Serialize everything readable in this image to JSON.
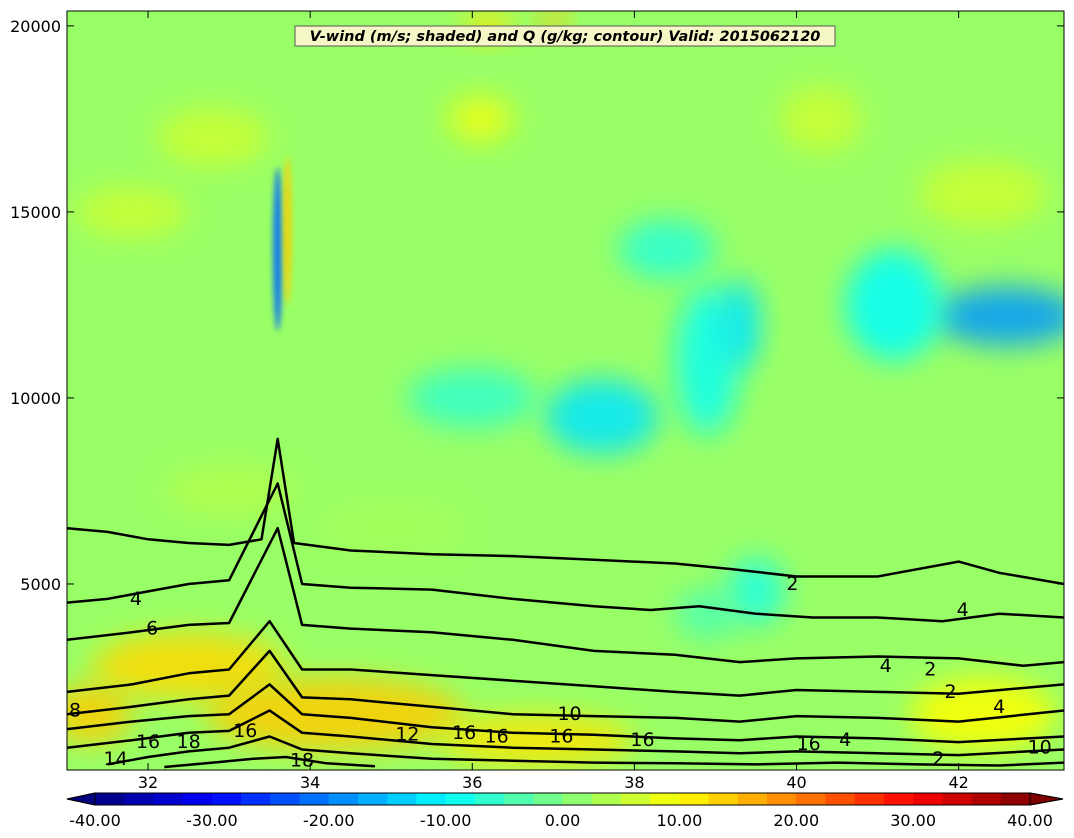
{
  "chart_data": {
    "type": "heatmap",
    "title": "V-wind (m/s; shaded) and Q (g/kg; contour) Valid: 2015062120",
    "xlabel": "",
    "ylabel": "",
    "xlim": [
      31.0,
      43.3
    ],
    "ylim": [
      0,
      20400
    ],
    "x_ticks": [
      32,
      34,
      36,
      38,
      40,
      42
    ],
    "y_ticks": [
      5000,
      10000,
      15000,
      20000
    ],
    "shaded": {
      "variable": "V-wind",
      "units": "m/s",
      "colormap": "jet",
      "range": [
        -40,
        40
      ],
      "colorbar_ticks": [
        "-40.00",
        "-30.00",
        "-20.00",
        "-10.00",
        "0.00",
        "10.00",
        "20.00",
        "30.00",
        "40.00"
      ],
      "colorbar_extend": "both"
    },
    "contours": {
      "variable": "Q",
      "units": "g/kg",
      "color": "#000000",
      "lines": [
        {
          "level": 2,
          "points": [
            [
              31.0,
              6500
            ],
            [
              31.5,
              6400
            ],
            [
              32.0,
              6200
            ],
            [
              32.5,
              6100
            ],
            [
              33.0,
              6050
            ],
            [
              33.4,
              6200
            ],
            [
              33.6,
              8900
            ],
            [
              33.8,
              6100
            ],
            [
              34.5,
              5900
            ],
            [
              35.5,
              5800
            ],
            [
              36.5,
              5750
            ],
            [
              37.5,
              5650
            ],
            [
              38.5,
              5550
            ],
            [
              39.2,
              5400
            ],
            [
              40.0,
              5200
            ],
            [
              41.0,
              5200
            ],
            [
              42.0,
              5600
            ],
            [
              42.5,
              5300
            ],
            [
              43.3,
              5000
            ]
          ]
        },
        {
          "level": 4,
          "points": [
            [
              31.0,
              4500
            ],
            [
              31.5,
              4600
            ],
            [
              32.0,
              4800
            ],
            [
              32.5,
              5000
            ],
            [
              33.0,
              5100
            ],
            [
              33.6,
              7700
            ],
            [
              33.9,
              5000
            ],
            [
              34.5,
              4900
            ],
            [
              35.5,
              4850
            ],
            [
              36.5,
              4600
            ],
            [
              37.5,
              4400
            ],
            [
              38.2,
              4300
            ],
            [
              38.8,
              4400
            ],
            [
              39.5,
              4200
            ],
            [
              40.2,
              4100
            ],
            [
              41.0,
              4100
            ],
            [
              41.8,
              4000
            ],
            [
              42.5,
              4200
            ],
            [
              43.3,
              4100
            ]
          ]
        },
        {
          "level": 6,
          "points": [
            [
              31.0,
              3500
            ],
            [
              31.8,
              3700
            ],
            [
              32.5,
              3900
            ],
            [
              33.0,
              3950
            ],
            [
              33.6,
              6500
            ],
            [
              33.9,
              3900
            ],
            [
              34.5,
              3800
            ],
            [
              35.5,
              3700
            ],
            [
              36.5,
              3500
            ],
            [
              37.5,
              3200
            ],
            [
              38.5,
              3100
            ],
            [
              39.3,
              2900
            ],
            [
              40.0,
              3000
            ],
            [
              41.0,
              3050
            ],
            [
              42.0,
              3000
            ],
            [
              42.8,
              2800
            ],
            [
              43.3,
              2900
            ]
          ]
        },
        {
          "level": 8,
          "points": [
            [
              31.0,
              2100
            ],
            [
              31.8,
              2300
            ],
            [
              32.5,
              2600
            ],
            [
              33.0,
              2700
            ],
            [
              33.5,
              4000
            ],
            [
              33.9,
              2700
            ],
            [
              34.5,
              2700
            ],
            [
              35.5,
              2550
            ],
            [
              36.5,
              2400
            ],
            [
              37.5,
              2250
            ],
            [
              38.5,
              2100
            ],
            [
              39.3,
              2000
            ],
            [
              40.0,
              2150
            ],
            [
              41.0,
              2100
            ],
            [
              42.0,
              2050
            ],
            [
              43.3,
              2300
            ]
          ]
        },
        {
          "level": 10,
          "points": [
            [
              31.0,
              1500
            ],
            [
              31.8,
              1700
            ],
            [
              32.5,
              1900
            ],
            [
              33.0,
              2000
            ],
            [
              33.5,
              3200
            ],
            [
              33.9,
              1950
            ],
            [
              34.5,
              1900
            ],
            [
              35.5,
              1700
            ],
            [
              36.5,
              1500
            ],
            [
              37.5,
              1450
            ],
            [
              38.5,
              1400
            ],
            [
              39.3,
              1300
            ],
            [
              40.0,
              1450
            ],
            [
              41.0,
              1400
            ],
            [
              42.0,
              1300
            ],
            [
              43.3,
              1600
            ]
          ]
        },
        {
          "level": 12,
          "points": [
            [
              31.0,
              1100
            ],
            [
              31.8,
              1300
            ],
            [
              32.5,
              1450
            ],
            [
              33.0,
              1500
            ],
            [
              33.5,
              2300
            ],
            [
              33.9,
              1500
            ],
            [
              34.5,
              1400
            ],
            [
              35.5,
              1150
            ],
            [
              36.5,
              1000
            ],
            [
              37.5,
              950
            ],
            [
              38.5,
              850
            ],
            [
              39.3,
              800
            ],
            [
              40.0,
              900
            ],
            [
              41.0,
              850
            ],
            [
              42.0,
              750
            ],
            [
              43.3,
              900
            ]
          ]
        },
        {
          "level": 14,
          "points": [
            [
              31.0,
              600
            ],
            [
              31.8,
              800
            ],
            [
              32.5,
              1000
            ],
            [
              33.0,
              1050
            ],
            [
              33.5,
              1600
            ],
            [
              33.9,
              1000
            ],
            [
              34.5,
              900
            ],
            [
              35.5,
              700
            ],
            [
              36.5,
              600
            ],
            [
              37.5,
              550
            ],
            [
              38.5,
              500
            ],
            [
              39.3,
              450
            ],
            [
              40.0,
              500
            ],
            [
              41.0,
              450
            ],
            [
              42.0,
              400
            ],
            [
              43.3,
              550
            ]
          ]
        },
        {
          "level": 16,
          "points": [
            [
              31.5,
              150
            ],
            [
              32.0,
              350
            ],
            [
              32.5,
              500
            ],
            [
              33.0,
              600
            ],
            [
              33.5,
              900
            ],
            [
              33.9,
              550
            ],
            [
              34.5,
              450
            ],
            [
              35.5,
              300
            ],
            [
              36.5,
              250
            ],
            [
              37.5,
              200
            ],
            [
              38.5,
              180
            ],
            [
              39.5,
              150
            ],
            [
              40.5,
              200
            ],
            [
              41.5,
              150
            ],
            [
              42.5,
              120
            ],
            [
              43.3,
              200
            ]
          ]
        },
        {
          "level": 18,
          "points": [
            [
              32.2,
              80
            ],
            [
              32.8,
              200
            ],
            [
              33.3,
              300
            ],
            [
              33.7,
              350
            ],
            [
              34.2,
              180
            ],
            [
              34.8,
              100
            ]
          ]
        }
      ],
      "labels": [
        {
          "text": "2",
          "x": 39.95,
          "y": 5000
        },
        {
          "text": "4",
          "x": 31.85,
          "y": 4600
        },
        {
          "text": "6",
          "x": 32.05,
          "y": 3800
        },
        {
          "text": "4",
          "x": 42.05,
          "y": 4300
        },
        {
          "text": "4",
          "x": 41.1,
          "y": 2800
        },
        {
          "text": "2",
          "x": 41.65,
          "y": 2700
        },
        {
          "text": "2",
          "x": 41.9,
          "y": 2100
        },
        {
          "text": "4",
          "x": 42.5,
          "y": 1700
        },
        {
          "text": "8",
          "x": 31.1,
          "y": 1600
        },
        {
          "text": "10",
          "x": 37.2,
          "y": 1500
        },
        {
          "text": "12",
          "x": 35.2,
          "y": 950
        },
        {
          "text": "16",
          "x": 35.9,
          "y": 1000
        },
        {
          "text": "16",
          "x": 36.3,
          "y": 900
        },
        {
          "text": "16",
          "x": 37.1,
          "y": 900
        },
        {
          "text": "16",
          "x": 33.2,
          "y": 1050
        },
        {
          "text": "16",
          "x": 32.0,
          "y": 750
        },
        {
          "text": "16",
          "x": 38.1,
          "y": 800
        },
        {
          "text": "16",
          "x": 40.15,
          "y": 700
        },
        {
          "text": "4",
          "x": 40.6,
          "y": 800
        },
        {
          "text": "18",
          "x": 32.5,
          "y": 750
        },
        {
          "text": "18",
          "x": 33.9,
          "y": 250
        },
        {
          "text": "14",
          "x": 31.6,
          "y": 300
        },
        {
          "text": "2",
          "x": 41.75,
          "y": 300
        },
        {
          "text": "10",
          "x": 43.0,
          "y": 600
        }
      ]
    },
    "shading_features": [
      {
        "x": 33.6,
        "y": 14000,
        "value": -22,
        "rx": 0.06,
        "ry": 2200
      },
      {
        "x": 33.72,
        "y": 14500,
        "value": 14,
        "rx": 0.05,
        "ry": 2000
      },
      {
        "x": 42.6,
        "y": 12200,
        "value": -18,
        "rx": 0.9,
        "ry": 800
      },
      {
        "x": 41.2,
        "y": 12500,
        "value": -10,
        "rx": 0.6,
        "ry": 1500
      },
      {
        "x": 37.6,
        "y": 9500,
        "value": -12,
        "rx": 0.7,
        "ry": 1000
      },
      {
        "x": 38.9,
        "y": 11000,
        "value": -9,
        "rx": 0.4,
        "ry": 2000
      },
      {
        "x": 39.3,
        "y": 12000,
        "value": -12,
        "rx": 0.25,
        "ry": 1200
      },
      {
        "x": 36.0,
        "y": 10000,
        "value": -6,
        "rx": 0.8,
        "ry": 800
      },
      {
        "x": 38.4,
        "y": 14000,
        "value": -7,
        "rx": 0.6,
        "ry": 800
      },
      {
        "x": 36.2,
        "y": 20000,
        "value": 12,
        "rx": 0.3,
        "ry": 400
      },
      {
        "x": 37.0,
        "y": 20200,
        "value": 15,
        "rx": 0.15,
        "ry": 400
      },
      {
        "x": 36.1,
        "y": 17500,
        "value": 9,
        "rx": 0.4,
        "ry": 600
      },
      {
        "x": 31.8,
        "y": 15000,
        "value": 6,
        "rx": 0.7,
        "ry": 700
      },
      {
        "x": 32.8,
        "y": 17000,
        "value": 6,
        "rx": 0.7,
        "ry": 800
      },
      {
        "x": 40.3,
        "y": 17500,
        "value": 6,
        "rx": 0.5,
        "ry": 900
      },
      {
        "x": 42.3,
        "y": 15500,
        "value": 6,
        "rx": 0.8,
        "ry": 900
      },
      {
        "x": 32.5,
        "y": 2800,
        "value": 13,
        "rx": 1.2,
        "ry": 900
      },
      {
        "x": 34.3,
        "y": 1500,
        "value": 14,
        "rx": 1.6,
        "ry": 1000
      },
      {
        "x": 31.3,
        "y": 1500,
        "value": 14,
        "rx": 0.5,
        "ry": 800
      },
      {
        "x": 36.8,
        "y": 800,
        "value": 12,
        "rx": 1.2,
        "ry": 700
      },
      {
        "x": 42.3,
        "y": 1500,
        "value": 10,
        "rx": 0.9,
        "ry": 1000
      },
      {
        "x": 39.5,
        "y": 4800,
        "value": -8,
        "rx": 0.35,
        "ry": 900
      },
      {
        "x": 38.9,
        "y": 4200,
        "value": -4,
        "rx": 0.4,
        "ry": 700
      },
      {
        "x": 33.0,
        "y": 7500,
        "value": 4,
        "rx": 0.8,
        "ry": 700
      },
      {
        "x": 35.0,
        "y": 6500,
        "value": 3,
        "rx": 0.9,
        "ry": 700
      }
    ]
  },
  "colors": {
    "background_value": 2,
    "frame": "#000000",
    "title_box": "#f5f7c6"
  }
}
